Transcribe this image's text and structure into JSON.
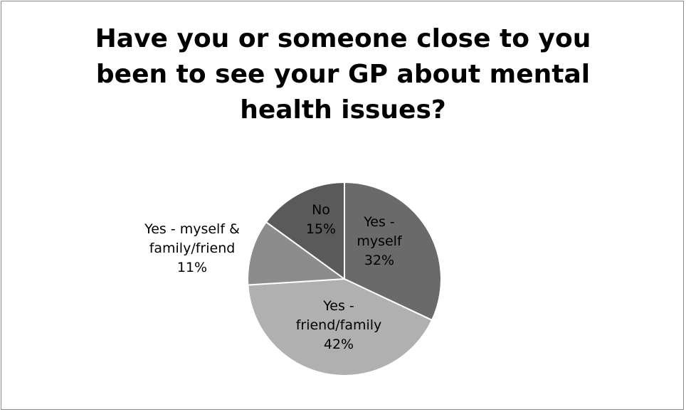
{
  "chart_data": {
    "type": "pie",
    "title_lines": [
      "Have you or someone close to you",
      "been to see your GP about mental",
      "health issues?"
    ],
    "slices": [
      {
        "label_lines": [
          "Yes -",
          "myself"
        ],
        "value": 32,
        "value_label": "32%",
        "color": "#6a6a6a"
      },
      {
        "label_lines": [
          "Yes -",
          "friend/family"
        ],
        "value": 42,
        "value_label": "42%",
        "color": "#b0b0b0"
      },
      {
        "label_lines": [
          "Yes - myself &",
          "family/friend"
        ],
        "value": 11,
        "value_label": "11%",
        "color": "#8c8c8c"
      },
      {
        "label_lines": [
          "No"
        ],
        "value": 15,
        "value_label": "15%",
        "color": "#5a5a5a"
      }
    ],
    "start_angle_deg": 0,
    "direction": "clockwise",
    "legend": "none",
    "data_labels": "category and percentage"
  }
}
